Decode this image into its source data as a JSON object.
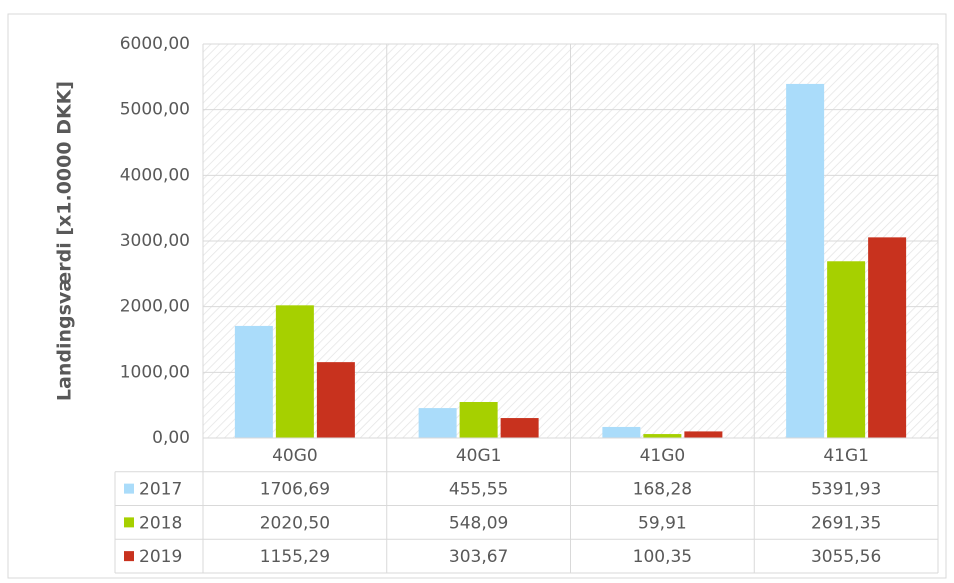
{
  "chart_data": {
    "type": "bar",
    "y_label": "Landingsværdi [x1.0000 DKK]",
    "categories": [
      "40G0",
      "40G1",
      "41G0",
      "41G1"
    ],
    "series": [
      {
        "name": "2017",
        "color": "#aadcfa",
        "values": [
          1706.69,
          455.55,
          168.28,
          5391.93
        ],
        "value_labels": [
          "1706,69",
          "455,55",
          "168,28",
          "5391,93"
        ]
      },
      {
        "name": "2018",
        "color": "#a6d000",
        "values": [
          2020.5,
          548.09,
          59.91,
          2691.35
        ],
        "value_labels": [
          "2020,50",
          "548,09",
          "59,91",
          "2691,35"
        ]
      },
      {
        "name": "2019",
        "color": "#c8321e",
        "values": [
          1155.29,
          303.67,
          100.35,
          3055.56
        ],
        "value_labels": [
          "1155,29",
          "303,67",
          "100,35",
          "3055,56"
        ]
      }
    ],
    "ylim": [
      0,
      6000
    ],
    "yticks": [
      {
        "value": 0,
        "label": "0,00"
      },
      {
        "value": 1000,
        "label": "1000,00"
      },
      {
        "value": 2000,
        "label": "2000,00"
      },
      {
        "value": 3000,
        "label": "3000,00"
      },
      {
        "value": 4000,
        "label": "4000,00"
      },
      {
        "value": 5000,
        "label": "5000,00"
      },
      {
        "value": 6000,
        "label": "6000,00"
      }
    ],
    "grid": true
  }
}
